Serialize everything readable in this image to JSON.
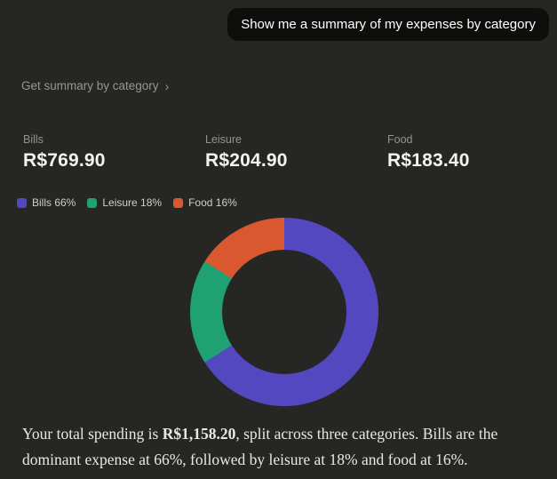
{
  "chat": {
    "user_message": "Show me a summary of my expenses by category"
  },
  "tool_link": {
    "label": "Get summary by category",
    "chevron": "›"
  },
  "stats": {
    "items": [
      {
        "label": "Bills",
        "value": "R$769.90"
      },
      {
        "label": "Leisure",
        "value": "R$204.90"
      },
      {
        "label": "Food",
        "value": "R$183.40"
      }
    ]
  },
  "legend": {
    "items": [
      {
        "label": "Bills 66%",
        "color": "#5348bf"
      },
      {
        "label": "Leisure 18%",
        "color": "#1fa173"
      },
      {
        "label": "Food 16%",
        "color": "#d9582f"
      }
    ]
  },
  "summary": {
    "prefix": "Your total spending is ",
    "total": "R$1,158.20",
    "suffix": ", split across three categories. Bills are the dominant expense at 66%, followed by leisure at 18% and food at 16%."
  },
  "colors": {
    "background": "#262624",
    "bubble": "#0e0e0c",
    "muted_text": "#97968e",
    "value_text": "#f4f3ee",
    "body_text": "#eae8e2"
  },
  "chart_data": {
    "type": "pie",
    "donut": true,
    "title": "",
    "categories": [
      "Bills",
      "Leisure",
      "Food"
    ],
    "values": [
      769.9,
      204.9,
      183.4
    ],
    "percents": [
      66,
      18,
      16
    ],
    "colors": [
      "#5348bf",
      "#1fa173",
      "#d9582f"
    ],
    "total": 1158.2,
    "currency": "R$",
    "start_angle_deg": 0,
    "direction": "clockwise",
    "legend_position": "top-left",
    "hole_ratio": 0.66
  }
}
